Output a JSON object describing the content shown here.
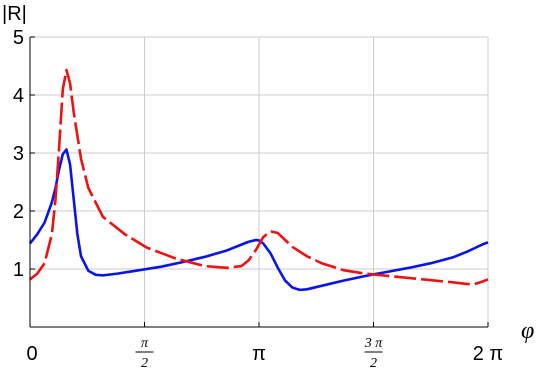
{
  "chart_data": {
    "type": "line",
    "title": "",
    "xlabel": "φ",
    "ylabel": "|R|",
    "xlim": [
      0,
      6.2832
    ],
    "ylim": [
      0,
      5
    ],
    "grid": true,
    "x_ticks": [
      {
        "value": 0,
        "label": "0"
      },
      {
        "value": 1.5708,
        "label": "",
        "numerator": "π",
        "denominator": "2"
      },
      {
        "value": 3.1416,
        "label": "π"
      },
      {
        "value": 4.7124,
        "label": "",
        "numerator": "3 π",
        "denominator": "2"
      },
      {
        "value": 6.2832,
        "label": "2 π"
      }
    ],
    "y_ticks": [
      {
        "value": 1,
        "label": "1"
      },
      {
        "value": 2,
        "label": "2"
      },
      {
        "value": 3,
        "label": "3"
      },
      {
        "value": 4,
        "label": "4"
      },
      {
        "value": 5,
        "label": "5"
      }
    ],
    "series": [
      {
        "color": "#0a14e6",
        "style": "solid",
        "x": [
          0,
          0.1,
          0.2,
          0.3,
          0.35,
          0.4,
          0.45,
          0.5,
          0.55,
          0.6,
          0.65,
          0.7,
          0.8,
          0.9,
          1.0,
          1.2,
          1.5,
          1.8,
          2.1,
          2.4,
          2.7,
          2.9,
          3.0,
          3.1,
          3.15,
          3.2,
          3.3,
          3.4,
          3.5,
          3.6,
          3.7,
          3.8,
          4.0,
          4.3,
          4.6,
          4.9,
          5.2,
          5.5,
          5.8,
          6.0,
          6.1,
          6.2,
          6.2832
        ],
        "y": [
          1.44,
          1.6,
          1.8,
          2.15,
          2.4,
          2.72,
          2.98,
          3.06,
          2.8,
          2.2,
          1.6,
          1.22,
          0.97,
          0.9,
          0.89,
          0.92,
          0.98,
          1.04,
          1.12,
          1.21,
          1.32,
          1.42,
          1.47,
          1.5,
          1.49,
          1.44,
          1.27,
          1.02,
          0.8,
          0.68,
          0.64,
          0.65,
          0.71,
          0.8,
          0.88,
          0.95,
          1.02,
          1.1,
          1.2,
          1.3,
          1.36,
          1.42,
          1.46
        ]
      },
      {
        "color": "#ee1111",
        "style": "dashed",
        "x": [
          0,
          0.1,
          0.2,
          0.3,
          0.35,
          0.4,
          0.45,
          0.5,
          0.55,
          0.6,
          0.7,
          0.8,
          1.0,
          1.3,
          1.6,
          2.0,
          2.4,
          2.7,
          2.9,
          3.0,
          3.1,
          3.2,
          3.3,
          3.4,
          3.5,
          3.6,
          3.8,
          4.0,
          4.3,
          4.6,
          5.0,
          5.4,
          5.8,
          6.0,
          6.1,
          6.2,
          6.2832
        ],
        "y": [
          0.82,
          0.92,
          1.1,
          1.6,
          2.2,
          3.1,
          4.1,
          4.43,
          4.2,
          3.7,
          2.9,
          2.4,
          1.9,
          1.6,
          1.37,
          1.18,
          1.05,
          1.02,
          1.05,
          1.15,
          1.33,
          1.55,
          1.65,
          1.62,
          1.5,
          1.38,
          1.22,
          1.1,
          0.98,
          0.92,
          0.87,
          0.82,
          0.77,
          0.74,
          0.74,
          0.78,
          0.82
        ]
      }
    ]
  }
}
